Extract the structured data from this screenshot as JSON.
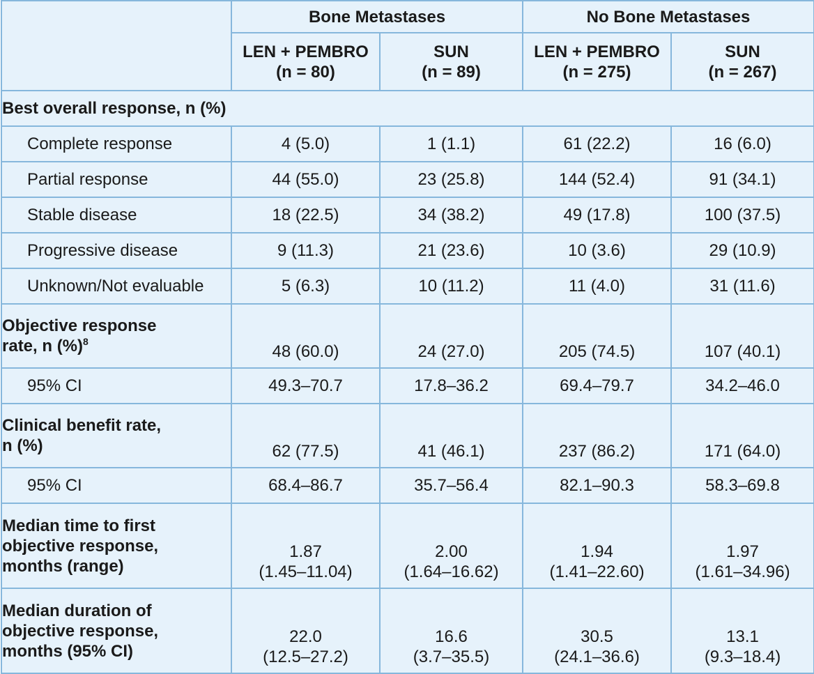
{
  "header": {
    "group_bone": "Bone Metastases",
    "group_nobone": "No Bone Metastases",
    "cols": [
      {
        "arm": "LEN + PEMBRO",
        "n": "(n = 80)"
      },
      {
        "arm": "SUN",
        "n": "(n = 89)"
      },
      {
        "arm": "LEN + PEMBRO",
        "n": "(n = 275)"
      },
      {
        "arm": "SUN",
        "n": "(n = 267)"
      }
    ]
  },
  "rows": {
    "best_overall": {
      "label": "Best overall response, n (%)"
    },
    "complete": {
      "label": "Complete response",
      "values": [
        "4 (5.0)",
        "1 (1.1)",
        "61 (22.2)",
        "16 (6.0)"
      ]
    },
    "partial": {
      "label": "Partial response",
      "values": [
        "44 (55.0)",
        "23 (25.8)",
        "144 (52.4)",
        "91 (34.1)"
      ]
    },
    "stable": {
      "label": "Stable disease",
      "values": [
        "18 (22.5)",
        "34 (38.2)",
        "49 (17.8)",
        "100 (37.5)"
      ]
    },
    "progressive": {
      "label": "Progressive disease",
      "values": [
        "9 (11.3)",
        "21 (23.6)",
        "10 (3.6)",
        "29 (10.9)"
      ]
    },
    "unknown": {
      "label": "Unknown/Not evaluable",
      "values": [
        "5 (6.3)",
        "10 (11.2)",
        "11 (4.0)",
        "31 (11.6)"
      ]
    },
    "orr": {
      "label": "Objective response\nrate, n (%)",
      "sup": "8",
      "values": [
        "48 (60.0)",
        "24 (27.0)",
        "205 (74.5)",
        "107 (40.1)"
      ]
    },
    "orr_ci": {
      "label": "95% CI",
      "values": [
        "49.3–70.7",
        "17.8–36.2",
        "69.4–79.7",
        "34.2–46.0"
      ]
    },
    "cbr": {
      "label": "Clinical benefit rate,\nn (%)",
      "values": [
        "62 (77.5)",
        "41 (46.1)",
        "237 (86.2)",
        "171 (64.0)"
      ]
    },
    "cbr_ci": {
      "label": "95% CI",
      "values": [
        "68.4–86.7",
        "35.7–56.4",
        "82.1–90.3",
        "58.3–69.8"
      ]
    },
    "ttr": {
      "label": "Median time to first\nobjective response,\nmonths (range)",
      "values": [
        "1.87\n(1.45–11.04)",
        "2.00\n(1.64–16.62)",
        "1.94\n(1.41–22.60)",
        "1.97\n(1.61–34.96)"
      ]
    },
    "dor": {
      "label": "Median duration of\nobjective response,\nmonths (95% CI)",
      "values": [
        "22.0\n(12.5–27.2)",
        "16.6\n(3.7–35.5)",
        "30.5\n(24.1–36.6)",
        "13.1\n(9.3–18.4)"
      ]
    }
  },
  "colors": {
    "background": "#e6f2fb",
    "border": "#86b7dc"
  }
}
